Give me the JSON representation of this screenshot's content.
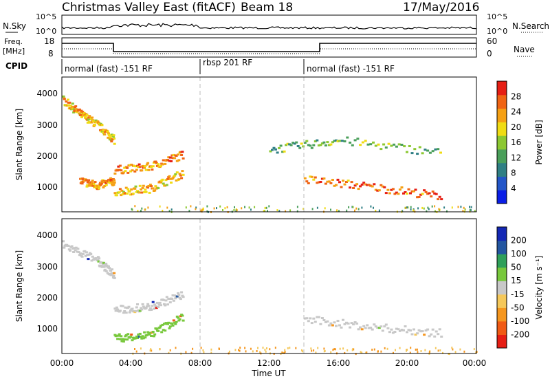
{
  "header": {
    "title": "Christmas Valley East (fitACF)",
    "beam_label": "Beam 18",
    "date": "17/May/2016"
  },
  "strip": {
    "nsky_label": "N.Sky",
    "nsearch_label": "N.Search",
    "tick_hi": "10^5",
    "tick_lo": "10^0",
    "freq_label_1": "Freq.",
    "freq_label_2": "[MHz]",
    "freq_ticks": [
      "18",
      "8"
    ],
    "nave_label": "Nave",
    "nave_ticks": [
      "60",
      "0"
    ],
    "cpid_label": "CPID",
    "cpid_segments": [
      {
        "label": "normal (fast) -151 RF",
        "start_hour": 0
      },
      {
        "label": "rbsp 201 RF",
        "start_hour": 8
      },
      {
        "label": "normal (fast) -151 RF",
        "start_hour": 14
      }
    ]
  },
  "chart_data": [
    {
      "type": "heatmap",
      "name": "power",
      "xlabel": "",
      "ylabel": "Slant Range [km]",
      "colorbar_label": "Power [dB]",
      "colorbar_ticks": [
        "4",
        "8",
        "12",
        "16",
        "20",
        "24",
        "28"
      ],
      "colorbar_colors": [
        "#0a1ee6",
        "#2356c8",
        "#2f7f84",
        "#4a9f5a",
        "#8cc832",
        "#f0dc14",
        "#f5a014",
        "#f06414",
        "#e61e14"
      ],
      "x_range": [
        0,
        24
      ],
      "y_range": [
        180,
        4500
      ],
      "y_ticks": [
        "1000",
        "2000",
        "3000",
        "4000"
      ],
      "features": [
        {
          "desc": "descending band",
          "x": [
            0,
            1,
            2,
            3
          ],
          "y": [
            3800,
            3350,
            3000,
            2500
          ],
          "power": 20
        },
        {
          "desc": "lower band",
          "x": [
            1,
            2,
            3
          ],
          "y": [
            1200,
            1050,
            1200
          ],
          "power": 22
        },
        {
          "desc": "upper arc",
          "x": [
            3,
            5,
            7
          ],
          "y": [
            1550,
            1650,
            2050
          ],
          "power": 22
        },
        {
          "desc": "lower arc",
          "x": [
            3,
            5,
            7
          ],
          "y": [
            850,
            950,
            1450
          ],
          "power": 20
        },
        {
          "desc": "evening band",
          "x": [
            14,
            18,
            22
          ],
          "y": [
            1250,
            1000,
            700
          ],
          "power": 24
        },
        {
          "desc": "scatter bands",
          "x": [
            12,
            16,
            22
          ],
          "y": [
            2200,
            2500,
            2100
          ],
          "power": 12
        }
      ]
    },
    {
      "type": "heatmap",
      "name": "velocity",
      "xlabel": "Time UT",
      "ylabel": "Slant Range [km]",
      "colorbar_label": "Velocity [m s⁻¹]",
      "colorbar_ticks": [
        "-200",
        "-100",
        "-50",
        "-15",
        "15",
        "50",
        "100",
        "200"
      ],
      "colorbar_colors": [
        "#e61e14",
        "#f05a14",
        "#f5961e",
        "#f5c85a",
        "#c8c8c8",
        "#78c83c",
        "#2fa05a",
        "#2356a0",
        "#1428b4"
      ],
      "x_range": [
        0,
        24
      ],
      "x_ticks": [
        "00:00",
        "04:00",
        "08:00",
        "12:00",
        "16:00",
        "20:00",
        "00:00"
      ],
      "y_range": [
        180,
        4500
      ],
      "y_ticks": [
        "1000",
        "2000",
        "3000",
        "4000"
      ],
      "features": [
        {
          "desc": "grey band",
          "x": [
            0,
            2,
            3
          ],
          "y": [
            3700,
            3200,
            2700
          ],
          "velocity": 0
        },
        {
          "desc": "green arc",
          "x": [
            3,
            5,
            7
          ],
          "y": [
            700,
            800,
            1400
          ],
          "velocity": 40
        },
        {
          "desc": "grey arc",
          "x": [
            3,
            5,
            7
          ],
          "y": [
            1600,
            1700,
            2100
          ],
          "velocity": 0
        },
        {
          "desc": "grey evening",
          "x": [
            14,
            18,
            22
          ],
          "y": [
            1300,
            1050,
            850
          ],
          "velocity": 0
        }
      ]
    }
  ]
}
